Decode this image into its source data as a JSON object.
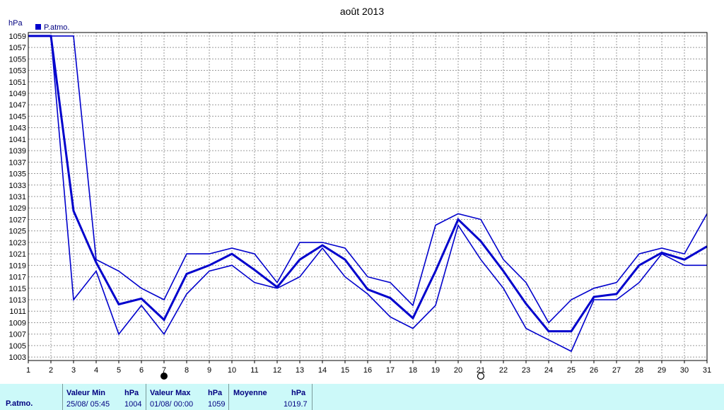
{
  "chart_data": {
    "type": "line",
    "title": "août 2013",
    "ylabel": "hPa",
    "legend": {
      "label": "P.atmo.",
      "color": "#0000cc",
      "position": "top-left"
    },
    "ylim": [
      1003,
      1060
    ],
    "yticks": [
      1003,
      1005,
      1007,
      1009,
      1011,
      1013,
      1015,
      1017,
      1019,
      1021,
      1023,
      1025,
      1027,
      1029,
      1031,
      1033,
      1035,
      1037,
      1039,
      1041,
      1043,
      1045,
      1047,
      1049,
      1051,
      1053,
      1055,
      1057,
      1059
    ],
    "x": [
      1,
      2,
      3,
      4,
      5,
      6,
      7,
      8,
      9,
      10,
      11,
      12,
      13,
      14,
      15,
      16,
      17,
      18,
      19,
      20,
      21,
      22,
      23,
      24,
      25,
      26,
      27,
      28,
      29,
      30,
      31
    ],
    "grid": true,
    "series": [
      {
        "role": "max",
        "values": [
          1059,
          1059,
          1059,
          1020,
          1018,
          1015,
          1013,
          1021,
          1021,
          1022,
          1021,
          1016,
          1023,
          1023,
          1022,
          1017,
          1016,
          1012,
          1026,
          1028,
          1027,
          1020,
          1016,
          1009,
          1013,
          1015,
          1016,
          1021,
          1022,
          1021,
          1028
        ]
      },
      {
        "role": "avg",
        "values": [
          1059,
          1059,
          1028.5,
          1019.5,
          1012.2,
          1013.2,
          1009.5,
          1017.5,
          1019,
          1021,
          1018.2,
          1015.2,
          1020,
          1022.5,
          1020,
          1014.8,
          1013.3,
          1009.8,
          1018,
          1027,
          1023.2,
          1018,
          1012.3,
          1007.5,
          1007.5,
          1013.5,
          1014,
          1019,
          1021.2,
          1020,
          1022.3
        ]
      },
      {
        "role": "min",
        "values": [
          1059,
          1059,
          1013,
          1018,
          1007,
          1012,
          1007,
          1014,
          1018,
          1019,
          1016,
          1015,
          1017,
          1022,
          1017,
          1014,
          1010,
          1008,
          1012,
          1026,
          1020,
          1015,
          1008,
          1006,
          1004,
          1013,
          1013,
          1016,
          1021,
          1019,
          1019
        ]
      }
    ],
    "moon_phases": [
      {
        "day": 7,
        "phase": "new-moon-icon"
      },
      {
        "day": 21,
        "phase": "full-moon-icon"
      }
    ]
  },
  "footer": {
    "row_label": "P.atmo.",
    "min_header": "Valeur Min",
    "min_unit": "hPa",
    "min_date": "25/08/  05:45",
    "min_value": "1004",
    "max_header": "Valeur Max",
    "max_unit": "hPa",
    "max_date": "01/08/  00:00",
    "max_value": "1059",
    "avg_header": "Moyenne",
    "avg_unit": "hPa",
    "avg_value": "1019.7"
  }
}
